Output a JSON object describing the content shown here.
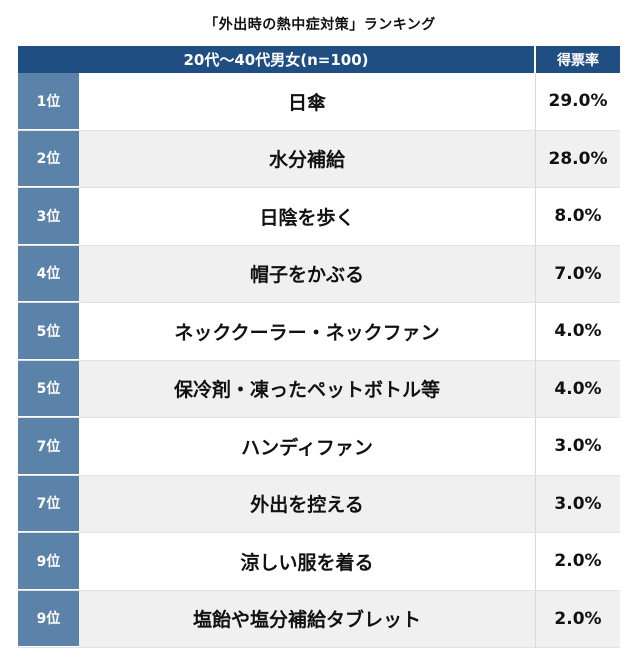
{
  "title": "「外出時の熱中症対策」ランキング",
  "header": {
    "group_label": "20代〜40代男女(n=100)",
    "value_label": "得票率"
  },
  "rows": [
    {
      "rank": "1位",
      "item": "日傘",
      "value": "29.0%"
    },
    {
      "rank": "2位",
      "item": "水分補給",
      "value": "28.0%"
    },
    {
      "rank": "3位",
      "item": "日陰を歩く",
      "value": "8.0%"
    },
    {
      "rank": "4位",
      "item": "帽子をかぶる",
      "value": "7.0%"
    },
    {
      "rank": "5位",
      "item": "ネッククーラー・ネックファン",
      "value": "4.0%"
    },
    {
      "rank": "5位",
      "item": "保冷剤・凍ったペットボトル等",
      "value": "4.0%"
    },
    {
      "rank": "7位",
      "item": "ハンディファン",
      "value": "3.0%"
    },
    {
      "rank": "7位",
      "item": "外出を控える",
      "value": "3.0%"
    },
    {
      "rank": "9位",
      "item": "涼しい服を着る",
      "value": "2.0%"
    },
    {
      "rank": "9位",
      "item": "塩飴や塩分補給タブレット",
      "value": "2.0%"
    }
  ],
  "chart_data": {
    "type": "table",
    "title": "「外出時の熱中症対策」ランキング",
    "columns": [
      "20代〜40代男女(n=100)",
      "得票率"
    ],
    "categories": [
      "日傘",
      "水分補給",
      "日陰を歩く",
      "帽子をかぶる",
      "ネッククーラー・ネックファン",
      "保冷剤・凍ったペットボトル等",
      "ハンディファン",
      "外出を控える",
      "涼しい服を着る",
      "塩飴や塩分補給タブレット"
    ],
    "ranks": [
      "1位",
      "2位",
      "3位",
      "4位",
      "5位",
      "5位",
      "7位",
      "7位",
      "9位",
      "9位"
    ],
    "values": [
      29.0,
      28.0,
      8.0,
      7.0,
      4.0,
      4.0,
      3.0,
      3.0,
      2.0,
      2.0
    ]
  }
}
